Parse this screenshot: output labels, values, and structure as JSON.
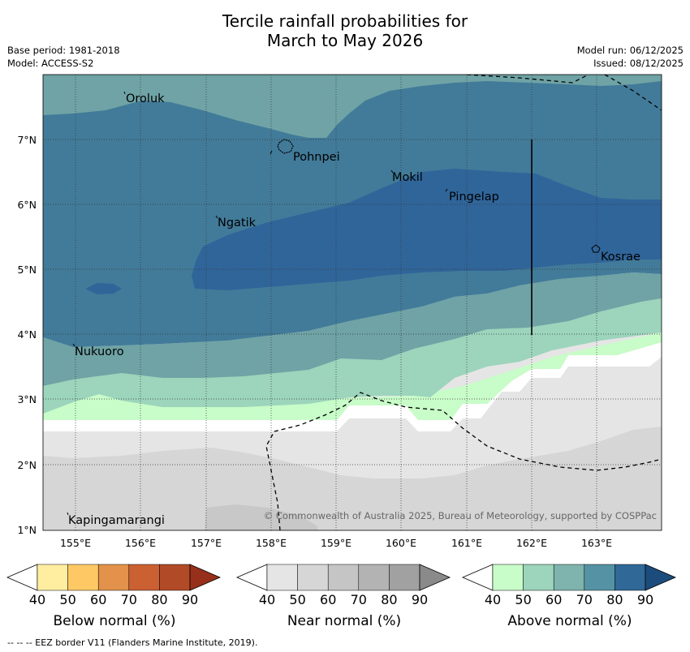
{
  "title": {
    "line1": "Tercile rainfall probabilities for",
    "line2": "March to May 2026"
  },
  "meta": {
    "base_period": "Base period: 1981-2018",
    "model": "Model: ACCESS-S2",
    "model_run": "Model run: 06/12/2025",
    "issued": "Issued: 08/12/2025"
  },
  "map": {
    "latitude_labels": [
      "7°N",
      "6°N",
      "5°N",
      "4°N",
      "3°N",
      "2°N",
      "1°N"
    ],
    "longitude_labels": [
      "155°E",
      "156°E",
      "157°E",
      "158°E",
      "159°E",
      "160°E",
      "161°E",
      "162°E",
      "163°E"
    ],
    "places": [
      "Oroluk",
      "Pohnpei",
      "Mokil",
      "Pingelap",
      "Ngatik",
      "Kosrae",
      "Nukuoro",
      "Kapingamarangi"
    ],
    "copyright": "© Commonwealth of Australia 2025, Bureau of Meteorology, supported by COSPPac"
  },
  "colorbars": {
    "below": {
      "label": "Below normal (%)",
      "ticks": [
        "40",
        "50",
        "60",
        "70",
        "80",
        "90"
      ],
      "colors": [
        "#ffffff",
        "#ffeda0",
        "#fec965",
        "#e2924a",
        "#cb6032",
        "#b14a26",
        "#97301a"
      ]
    },
    "near": {
      "label": "Near normal (%)",
      "ticks": [
        "40",
        "50",
        "60",
        "70",
        "80",
        "90"
      ],
      "colors": [
        "#ffffff",
        "#e5e5e5",
        "#d6d6d6",
        "#c5c5c5",
        "#b3b3b3",
        "#a1a1a1",
        "#8a8a8a"
      ]
    },
    "above": {
      "label": "Above normal (%)",
      "ticks": [
        "40",
        "50",
        "60",
        "70",
        "80",
        "90"
      ],
      "colors": [
        "#ffffff",
        "#c8fcc8",
        "#9cd4bc",
        "#7fb3ad",
        "#5593a4",
        "#306898",
        "#1c4c7c"
      ]
    }
  },
  "footer": "--  --  -- EEZ border V11 (Flanders Marine Institute, 2019)."
}
